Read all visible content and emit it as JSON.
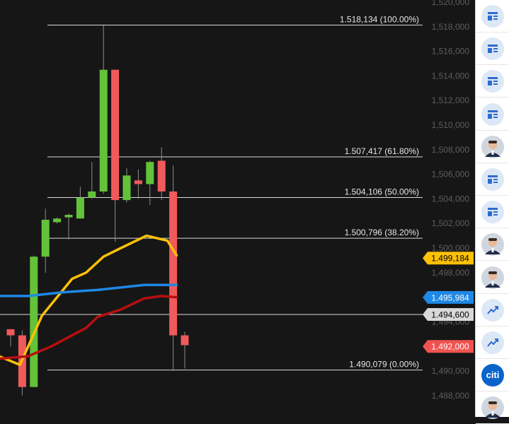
{
  "chart_data": {
    "type": "candlestick",
    "ylim": [
      1.4868,
      1.5206
    ],
    "y_ticks": [
      "1,520,000",
      "1,518,000",
      "1,516,000",
      "1,514,000",
      "1,512,000",
      "1,510,000",
      "1,508,000",
      "1,506,000",
      "1,504,000",
      "1,502,000",
      "1,500,000",
      "1,498,000",
      "1,496,000",
      "1,494,000",
      "1,492,000",
      "1,490,000",
      "1,488,000"
    ],
    "y_tick_values": [
      1.52,
      1.518,
      1.516,
      1.514,
      1.512,
      1.51,
      1.508,
      1.506,
      1.504,
      1.502,
      1.5,
      1.498,
      1.496,
      1.494,
      1.492,
      1.49,
      1.488
    ],
    "fib_levels": [
      {
        "value": 1.518134,
        "label": "1.518,134 (100.00%)"
      },
      {
        "value": 1.507417,
        "label": "1.507,417 (61.80%)"
      },
      {
        "value": 1.504106,
        "label": "1.504,106 (50.00%)"
      },
      {
        "value": 1.500796,
        "label": "1.500,796 (38.20%)"
      },
      {
        "value": 1.4946,
        "label": ""
      },
      {
        "value": 1.490079,
        "label": "1.490,079 (0.00%)"
      }
    ],
    "candles": [
      {
        "o": 1.4934,
        "h": 1.4934,
        "l": 1.492,
        "c": 1.4929
      },
      {
        "o": 1.4929,
        "h": 1.4933,
        "l": 1.488,
        "c": 1.4887
      },
      {
        "o": 1.4887,
        "h": 1.4994,
        "l": 1.4887,
        "c": 1.4993
      },
      {
        "o": 1.4993,
        "h": 1.5032,
        "l": 1.498,
        "c": 1.5023
      },
      {
        "o": 1.5021,
        "h": 1.5025,
        "l": 1.502,
        "c": 1.5024
      },
      {
        "o": 1.5025,
        "h": 1.5028,
        "l": 1.5007,
        "c": 1.5027
      },
      {
        "o": 1.5024,
        "h": 1.505,
        "l": 1.5024,
        "c": 1.5041
      },
      {
        "o": 1.5041,
        "h": 1.507,
        "l": 1.504,
        "c": 1.5046
      },
      {
        "o": 1.5046,
        "h": 1.5181,
        "l": 1.5044,
        "c": 1.5145
      },
      {
        "o": 1.5145,
        "h": 1.5145,
        "l": 1.5005,
        "c": 1.5039
      },
      {
        "o": 1.5039,
        "h": 1.5065,
        "l": 1.5037,
        "c": 1.5059
      },
      {
        "o": 1.5055,
        "h": 1.5064,
        "l": 1.504,
        "c": 1.5052
      },
      {
        "o": 1.5052,
        "h": 1.5071,
        "l": 1.5035,
        "c": 1.507
      },
      {
        "o": 1.5071,
        "h": 1.5082,
        "l": 1.5039,
        "c": 1.5046
      },
      {
        "o": 1.5046,
        "h": 1.5067,
        "l": 1.49,
        "c": 1.4929
      },
      {
        "o": 1.4929,
        "h": 1.4932,
        "l": 1.4902,
        "c": 1.4921
      }
    ],
    "ma_yellow": [
      [
        -1,
        1.4912
      ],
      [
        0.8,
        1.4905
      ],
      [
        2.7,
        1.4945
      ],
      [
        5.3,
        1.4975
      ],
      [
        6.5,
        1.498
      ],
      [
        8.0,
        1.4993
      ],
      [
        9.5,
        1.5
      ],
      [
        11.7,
        1.501
      ],
      [
        13.5,
        1.5006
      ],
      [
        14.3,
        1.4994
      ]
    ],
    "ma_red": [
      [
        -1,
        1.491
      ],
      [
        1.5,
        1.4912
      ],
      [
        3.5,
        1.492
      ],
      [
        6.5,
        1.4935
      ],
      [
        7.5,
        1.4944
      ],
      [
        9.5,
        1.495
      ],
      [
        11.5,
        1.4959
      ],
      [
        13.0,
        1.4961
      ],
      [
        14.3,
        1.496
      ]
    ],
    "ma_blue": [
      [
        -1,
        1.4961
      ],
      [
        1.5,
        1.4961
      ],
      [
        4.5,
        1.4964
      ],
      [
        7.5,
        1.4966
      ],
      [
        9.5,
        1.4968
      ],
      [
        11.5,
        1.497
      ],
      [
        13.5,
        1.497
      ],
      [
        14.3,
        1.497
      ]
    ],
    "price_tags": [
      {
        "value": 1.499184,
        "label": "1.499,184",
        "bg": "#ffc107",
        "fg": "#000000"
      },
      {
        "value": 1.495984,
        "label": "1.495,984",
        "bg": "#1e88e5",
        "fg": "#ffffff"
      },
      {
        "value": 1.4946,
        "label": "1.494,600",
        "bg": "#d8d8d8",
        "fg": "#000000"
      },
      {
        "value": 1.492,
        "label": "1.492,000",
        "bg": "#ef5350",
        "fg": "#ffffff"
      }
    ],
    "colors": {
      "up": "#63c23a",
      "down": "#f05a5a",
      "wick": "#8c8c8c",
      "ma_yellow": "#ffc107",
      "ma_red": "#b80f0f",
      "ma_blue": "#1e88e5",
      "fib_line": "#d9d9d9",
      "tick_text": "#5f5f5f"
    }
  },
  "sidebar": {
    "items": [
      {
        "icon": "news-article-icon"
      },
      {
        "icon": "news-article-icon"
      },
      {
        "icon": "news-article-icon"
      },
      {
        "icon": "news-article-icon"
      },
      {
        "icon": "analyst-avatar-icon"
      },
      {
        "icon": "news-article-icon"
      },
      {
        "icon": "news-article-icon"
      },
      {
        "icon": "analyst-avatar-icon"
      },
      {
        "icon": "analyst-avatar-icon"
      },
      {
        "icon": "trend-chart-icon"
      },
      {
        "icon": "trend-chart-icon"
      },
      {
        "icon": "citi-logo-icon",
        "logo_text": "citi"
      },
      {
        "icon": "analyst-avatar-icon"
      }
    ]
  }
}
